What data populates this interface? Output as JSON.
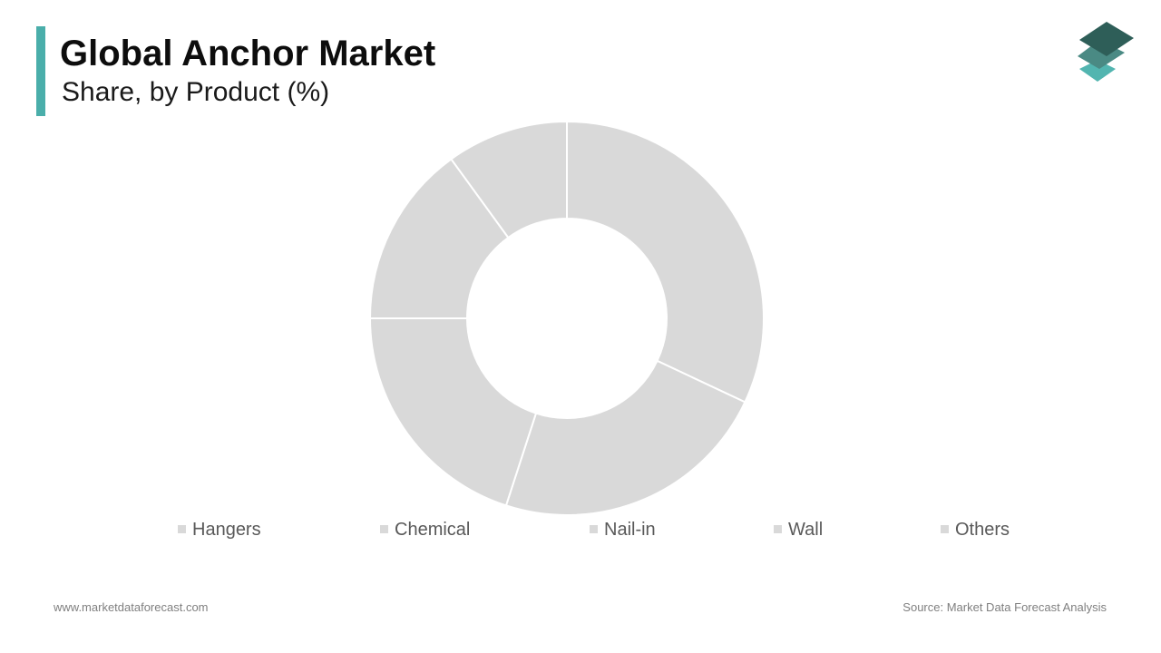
{
  "header": {
    "title": "Global Anchor Market",
    "subtitle": "Share, by Product (%)"
  },
  "colors": {
    "accent": "#4aaeaa",
    "slice": "#d9d9d9",
    "slice_border": "#ffffff",
    "logo_top": "#2e5e58",
    "logo_mid": "#4a8a84",
    "logo_bottom": "#52b5b0"
  },
  "logo": {
    "icon": "stacked-layers-icon"
  },
  "chart_data": {
    "type": "pie",
    "donut": true,
    "title": "",
    "categories": [
      "Hangers",
      "Chemical",
      "Nail-in",
      "Wall",
      "Others"
    ],
    "values": [
      32,
      23,
      20,
      15,
      10
    ],
    "legend_position": "bottom",
    "legend_entries": [
      "Hangers",
      "Chemical",
      "Nail-in",
      "Wall",
      "Others"
    ]
  },
  "footer": {
    "website": "www.marketdataforecast.com",
    "source": "Source: Market Data Forecast Analysis"
  }
}
